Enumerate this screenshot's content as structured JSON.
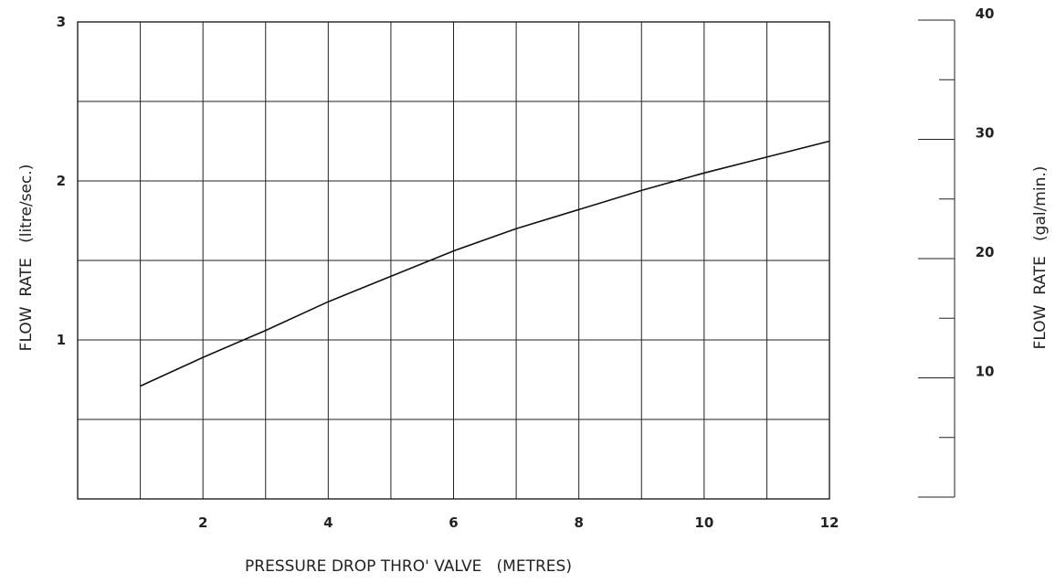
{
  "chart_data": {
    "type": "line",
    "title": "",
    "xlabel": "PRESSURE DROP THRO' VALVE   (METRES)",
    "ylabel": "FLOW  RATE   (litre/sec.)",
    "y2label": "FLOW  RATE   (gal/min.)",
    "xlim": [
      0,
      12
    ],
    "ylim": [
      0,
      3
    ],
    "y2lim": [
      0,
      40
    ],
    "x_ticks": [
      2,
      4,
      6,
      8,
      10,
      12
    ],
    "y_ticks": [
      1,
      2,
      3
    ],
    "y2_ticks": [
      10,
      20,
      30,
      40
    ],
    "grid": true,
    "x": [
      1,
      2,
      3,
      4,
      5,
      6,
      7,
      8,
      9,
      10,
      11,
      12
    ],
    "y": [
      0.71,
      0.89,
      1.06,
      1.24,
      1.4,
      1.56,
      1.7,
      1.82,
      1.94,
      2.05,
      2.15,
      2.25
    ]
  }
}
